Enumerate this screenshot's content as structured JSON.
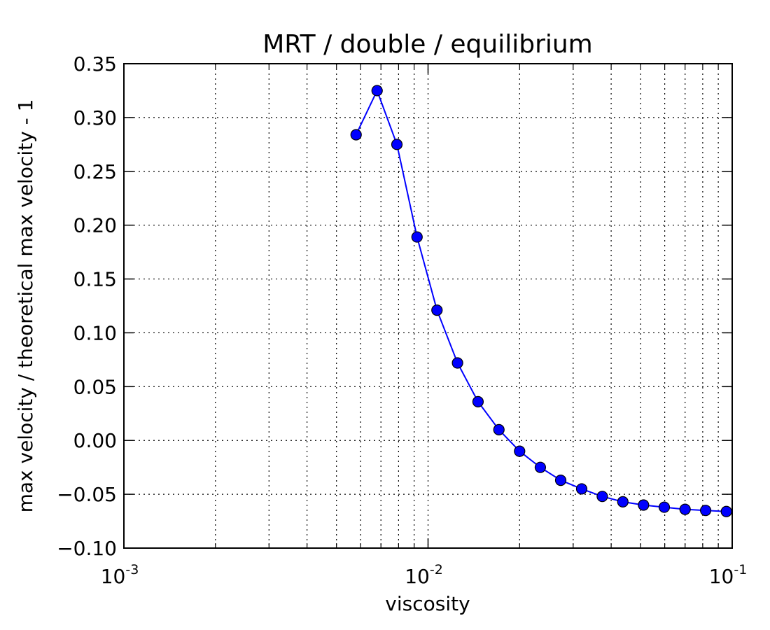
{
  "chart_data": {
    "type": "line",
    "title": "MRT / double / equilibrium",
    "xlabel": "viscosity",
    "ylabel": "max velocity / theoretical max velocity - 1",
    "xscale": "log",
    "xlim": [
      0.001,
      0.1
    ],
    "ylim": [
      -0.1,
      0.35
    ],
    "grid": true,
    "grid_style": "dotted",
    "line_color": "#0000ff",
    "marker_color": "#0000ff",
    "marker": "circle",
    "xticks": [
      {
        "value": 0.001,
        "base": "10",
        "exp": "-3"
      },
      {
        "value": 0.01,
        "base": "10",
        "exp": "-2"
      },
      {
        "value": 0.1,
        "base": "10",
        "exp": "-1"
      }
    ],
    "yticks": [
      {
        "value": 0.35,
        "label": "0.35"
      },
      {
        "value": 0.3,
        "label": "0.30"
      },
      {
        "value": 0.25,
        "label": "0.25"
      },
      {
        "value": 0.2,
        "label": "0.20"
      },
      {
        "value": 0.15,
        "label": "0.15"
      },
      {
        "value": 0.1,
        "label": "0.10"
      },
      {
        "value": 0.05,
        "label": "0.05"
      },
      {
        "value": 0.0,
        "label": "0.00"
      },
      {
        "value": -0.05,
        "label": "−0.05"
      },
      {
        "value": -0.1,
        "label": "−0.10"
      }
    ],
    "x": [
      0.0058,
      0.0068,
      0.0079,
      0.0092,
      0.0107,
      0.0125,
      0.0146,
      0.0171,
      0.02,
      0.0234,
      0.0273,
      0.032,
      0.0374,
      0.0437,
      0.0511,
      0.0598,
      0.07,
      0.0818,
      0.0957
    ],
    "y": [
      0.284,
      0.325,
      0.275,
      0.189,
      0.121,
      0.072,
      0.036,
      0.01,
      -0.01,
      -0.025,
      -0.037,
      -0.045,
      -0.052,
      -0.057,
      -0.06,
      -0.062,
      -0.064,
      -0.065,
      -0.066
    ]
  }
}
